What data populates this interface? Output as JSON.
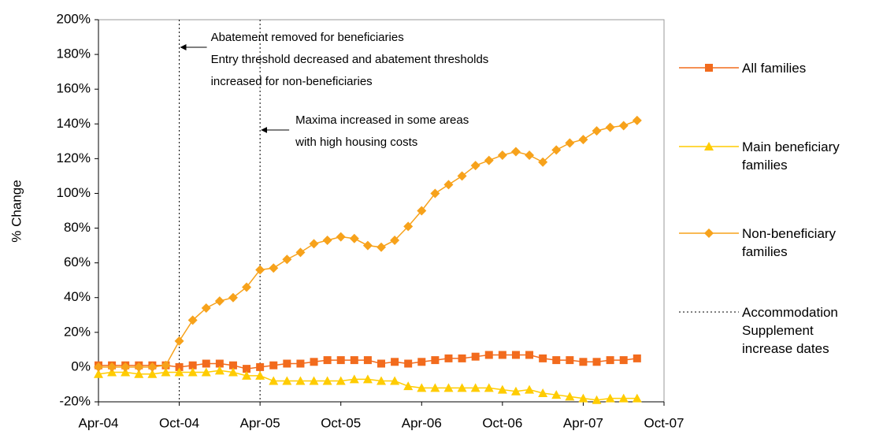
{
  "chart_data": {
    "type": "line",
    "y_label": "% Change",
    "x": [
      "2004-04",
      "2004-05",
      "2004-06",
      "2004-07",
      "2004-08",
      "2004-09",
      "2004-10",
      "2004-11",
      "2004-12",
      "2005-01",
      "2005-02",
      "2005-03",
      "2005-04",
      "2005-05",
      "2005-06",
      "2005-07",
      "2005-08",
      "2005-09",
      "2005-10",
      "2005-11",
      "2005-12",
      "2006-01",
      "2006-02",
      "2006-03",
      "2006-04",
      "2006-05",
      "2006-06",
      "2006-07",
      "2006-08",
      "2006-09",
      "2006-10",
      "2006-11",
      "2006-12",
      "2007-01",
      "2007-02",
      "2007-03",
      "2007-04",
      "2007-05",
      "2007-06",
      "2007-07",
      "2007-08"
    ],
    "series": [
      {
        "name": "All families",
        "color": "#f26b1d",
        "marker": "square",
        "values": [
          1,
          1,
          1,
          1,
          1,
          1,
          0,
          1,
          2,
          2,
          1,
          -1,
          0,
          1,
          2,
          2,
          3,
          4,
          4,
          4,
          4,
          2,
          3,
          2,
          3,
          4,
          5,
          5,
          6,
          7,
          7,
          7,
          7,
          5,
          4,
          4,
          3,
          3,
          4,
          4,
          5
        ]
      },
      {
        "name": "Main beneficiary families",
        "color": "#ffcc00",
        "marker": "triangle",
        "values": [
          -4,
          -3,
          -3,
          -4,
          -4,
          -3,
          -3,
          -3,
          -3,
          -2,
          -3,
          -5,
          -5,
          -8,
          -8,
          -8,
          -8,
          -8,
          -8,
          -7,
          -7,
          -8,
          -8,
          -11,
          -12,
          -12,
          -12,
          -12,
          -12,
          -12,
          -13,
          -14,
          -13,
          -15,
          -16,
          -17,
          -18,
          -19,
          -18,
          -18,
          -18
        ]
      },
      {
        "name": "Non-beneficiary families",
        "color": "#f7a21b",
        "marker": "diamond",
        "values": [
          0,
          0,
          0,
          0,
          0,
          1,
          15,
          27,
          34,
          38,
          40,
          46,
          56,
          57,
          62,
          66,
          71,
          73,
          75,
          74,
          70,
          69,
          73,
          81,
          90,
          100,
          105,
          110,
          116,
          119,
          122,
          124,
          122,
          118,
          125,
          129,
          131,
          136,
          138,
          139,
          142
        ]
      }
    ],
    "reference_lines": {
      "name": "Accommodation Supplement increase dates",
      "x": [
        "2004-10",
        "2005-04"
      ]
    },
    "annotations": [
      {
        "x": "2004-10",
        "lines": [
          "Abatement removed for beneficiaries",
          "Entry threshold decreased and abatement thresholds",
          "increased for non-beneficiaries"
        ]
      },
      {
        "x": "2005-04",
        "lines": [
          "Maxima increased in some areas",
          "with high housing costs"
        ]
      }
    ],
    "xlim": [
      "2004-04",
      "2007-10"
    ],
    "xticks": [
      {
        "value": "2004-04",
        "label": "Apr-04"
      },
      {
        "value": "2004-10",
        "label": "Oct-04"
      },
      {
        "value": "2005-04",
        "label": "Apr-05"
      },
      {
        "value": "2005-10",
        "label": "Oct-05"
      },
      {
        "value": "2006-04",
        "label": "Apr-06"
      },
      {
        "value": "2006-10",
        "label": "Oct-06"
      },
      {
        "value": "2007-04",
        "label": "Apr-07"
      },
      {
        "value": "2007-10",
        "label": "Oct-07"
      }
    ],
    "ylim": [
      -20,
      200
    ],
    "yticks": [
      {
        "value": -20,
        "label": "-20%"
      },
      {
        "value": 0,
        "label": "0%"
      },
      {
        "value": 20,
        "label": "20%"
      },
      {
        "value": 40,
        "label": "40%"
      },
      {
        "value": 60,
        "label": "60%"
      },
      {
        "value": 80,
        "label": "80%"
      },
      {
        "value": 100,
        "label": "100%"
      },
      {
        "value": 120,
        "label": "120%"
      },
      {
        "value": 140,
        "label": "140%"
      },
      {
        "value": 160,
        "label": "160%"
      },
      {
        "value": 180,
        "label": "180%"
      },
      {
        "value": 200,
        "label": "200%"
      }
    ],
    "grid": false,
    "legend": "right"
  }
}
